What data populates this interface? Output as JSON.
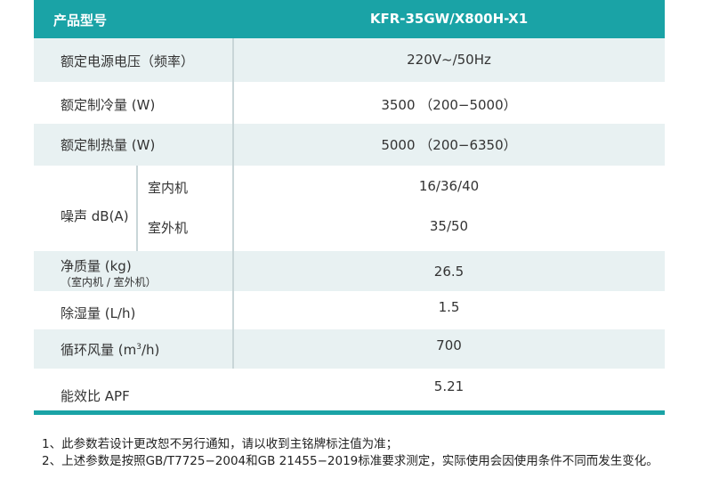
{
  "table": {
    "header": {
      "label": "产品型号",
      "value": "KFR-35GW/X800H-X1"
    },
    "rows": {
      "voltage": {
        "label": "额定电源电压（频率）",
        "value": "220V~/50Hz"
      },
      "cooling": {
        "label": "额定制冷量 (W)",
        "value": "3500 （200−5000）"
      },
      "heating": {
        "label": "额定制热量 (W)",
        "value": "5000 （200−6350）"
      },
      "noise": {
        "label": "噪声 dB(A)",
        "indoor_label": "室内机",
        "indoor_value": "16/36/40",
        "outdoor_label": "室外机",
        "outdoor_value": "35/50"
      },
      "weight": {
        "label": "净质量 (kg)",
        "note": "（室内机 / 室外机）",
        "value": "26.5"
      },
      "dehumid": {
        "label": "除湿量 (L/h)",
        "value": "1.5"
      },
      "airflow": {
        "label_prefix": "循环风量 (m",
        "label_sup": "3",
        "label_suffix": "/h)",
        "value": "700"
      },
      "apf": {
        "label": "能效比 APF",
        "value": "5.21"
      }
    }
  },
  "notes": [
    "1、此参数若设计更改恕不另行通知，请以收到主铭牌标注值为准；",
    "2、上述参数是按照GB/T7725−2004和GB 21455−2019标准要求测定，实际使用会因使用条件不同而发生变化。"
  ],
  "colors": {
    "accent": "#1aa3a6",
    "row_shade": "#e8f1f2"
  }
}
